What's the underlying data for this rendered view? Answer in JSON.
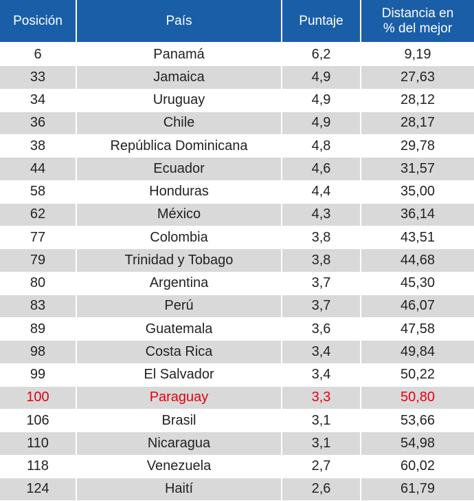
{
  "colors": {
    "header_bg": "#1b5ea8",
    "header_text": "#ffffff",
    "stripe": "#d9d9d9",
    "highlight_text": "#e3000f"
  },
  "header": {
    "posicion": "Posición",
    "pais": "País",
    "puntaje": "Puntaje",
    "distancia_line1": "Distancia en",
    "distancia_line2": "% del mejor"
  },
  "rows": [
    {
      "posicion": "6",
      "pais": "Panamá",
      "puntaje": "6,2",
      "distancia": "9,19",
      "highlight": false
    },
    {
      "posicion": "33",
      "pais": "Jamaica",
      "puntaje": "4,9",
      "distancia": "27,63",
      "highlight": false
    },
    {
      "posicion": "34",
      "pais": "Uruguay",
      "puntaje": "4,9",
      "distancia": "28,12",
      "highlight": false
    },
    {
      "posicion": "36",
      "pais": "Chile",
      "puntaje": "4,9",
      "distancia": "28,17",
      "highlight": false
    },
    {
      "posicion": "38",
      "pais": "República Dominicana",
      "puntaje": "4,8",
      "distancia": "29,78",
      "highlight": false
    },
    {
      "posicion": "44",
      "pais": "Ecuador",
      "puntaje": "4,6",
      "distancia": "31,57",
      "highlight": false
    },
    {
      "posicion": "58",
      "pais": "Honduras",
      "puntaje": "4,4",
      "distancia": "35,00",
      "highlight": false
    },
    {
      "posicion": "62",
      "pais": "México",
      "puntaje": "4,3",
      "distancia": "36,14",
      "highlight": false
    },
    {
      "posicion": "77",
      "pais": "Colombia",
      "puntaje": "3,8",
      "distancia": "43,51",
      "highlight": false
    },
    {
      "posicion": "79",
      "pais": "Trinidad y Tobago",
      "puntaje": "3,8",
      "distancia": "44,68",
      "highlight": false
    },
    {
      "posicion": "80",
      "pais": "Argentina",
      "puntaje": "3,7",
      "distancia": "45,30",
      "highlight": false
    },
    {
      "posicion": "83",
      "pais": "Perú",
      "puntaje": "3,7",
      "distancia": "46,07",
      "highlight": false
    },
    {
      "posicion": "89",
      "pais": "Guatemala",
      "puntaje": "3,6",
      "distancia": "47,58",
      "highlight": false
    },
    {
      "posicion": "98",
      "pais": "Costa Rica",
      "puntaje": "3,4",
      "distancia": "49,84",
      "highlight": false
    },
    {
      "posicion": "99",
      "pais": "El Salvador",
      "puntaje": "3,4",
      "distancia": "50,22",
      "highlight": false
    },
    {
      "posicion": "100",
      "pais": "Paraguay",
      "puntaje": "3,3",
      "distancia": "50,80",
      "highlight": true
    },
    {
      "posicion": "106",
      "pais": "Brasil",
      "puntaje": "3,1",
      "distancia": "53,66",
      "highlight": false
    },
    {
      "posicion": "110",
      "pais": "Nicaragua",
      "puntaje": "3,1",
      "distancia": "54,98",
      "highlight": false
    },
    {
      "posicion": "118",
      "pais": "Venezuela",
      "puntaje": "2,7",
      "distancia": "60,02",
      "highlight": false
    },
    {
      "posicion": "124",
      "pais": "Haití",
      "puntaje": "2,6",
      "distancia": "61,79",
      "highlight": false
    }
  ]
}
